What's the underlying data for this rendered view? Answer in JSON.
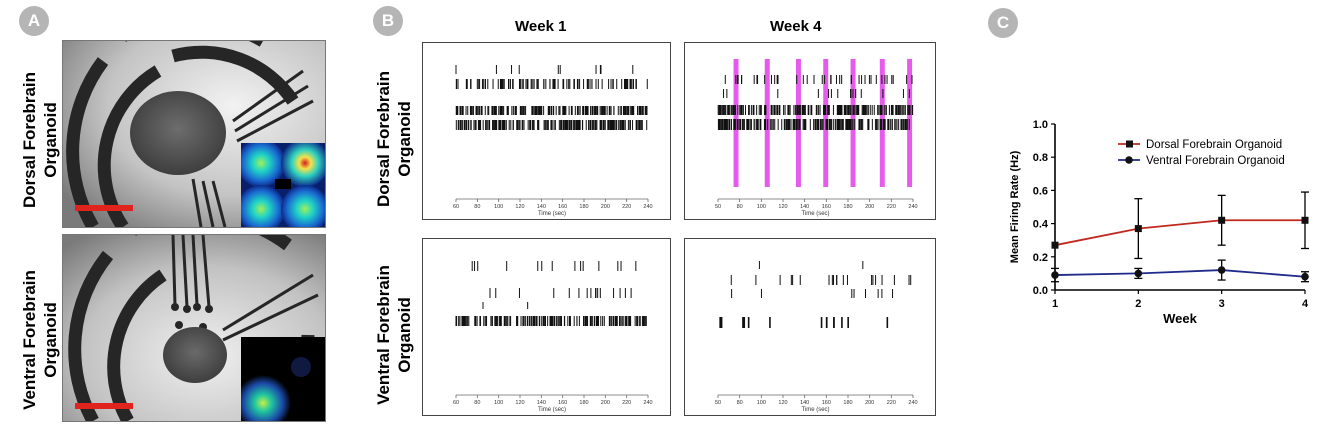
{
  "panels": {
    "a": "A",
    "b": "B",
    "c": "C"
  },
  "row_labels": {
    "dorsal_line1": "Dorsal Forebrain",
    "dorsal_line2": "Organoid",
    "ventral_line1": "Ventral Forebrain",
    "ventral_line2": "Organoid"
  },
  "week_titles": {
    "w1": "Week 1",
    "w4": "Week 4"
  },
  "raster_axis_label": "Time (sec)",
  "raster_ticks_a": [
    "60",
    "80",
    "100",
    "120",
    "140",
    "160",
    "180",
    "200",
    "220",
    "240"
  ],
  "raster_ticks_b": [
    "50",
    "80",
    "100",
    "120",
    "140",
    "160",
    "180",
    "200",
    "220",
    "240"
  ],
  "colors": {
    "scale_bar": "#e0231c",
    "burst": "#e040e8",
    "dorsal": "#c0281e",
    "ventral": "#1f2a8a"
  },
  "chart_data": {
    "type": "line",
    "xlabel": "Week",
    "ylabel": "Mean Firing Rate (Hz)",
    "x": [
      1,
      2,
      3,
      4
    ],
    "xlim": [
      1,
      4
    ],
    "ylim": [
      0,
      1.0
    ],
    "yticks": [
      "0.0",
      "0.2",
      "0.4",
      "0.6",
      "0.8",
      "1.0"
    ],
    "xticks": [
      "1",
      "2",
      "3",
      "4"
    ],
    "legend_position": "top-right",
    "series": [
      {
        "name": "Dorsal Forebrain Organoid",
        "values": [
          0.27,
          0.37,
          0.42,
          0.42
        ],
        "err": [
          0.0,
          0.18,
          0.15,
          0.17
        ]
      },
      {
        "name": "Ventral Forebrain Organoid",
        "values": [
          0.09,
          0.1,
          0.12,
          0.08
        ],
        "err": [
          0.04,
          0.03,
          0.06,
          0.03
        ]
      }
    ]
  }
}
